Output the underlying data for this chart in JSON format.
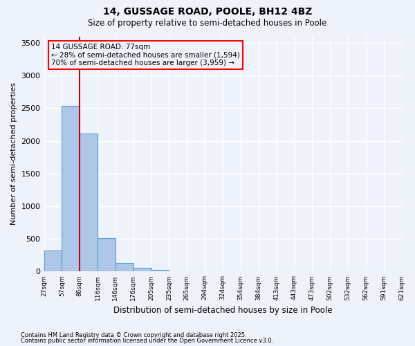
{
  "title_line1": "14, GUSSAGE ROAD, POOLE, BH12 4BZ",
  "title_line2": "Size of property relative to semi-detached houses in Poole",
  "xlabel": "Distribution of semi-detached houses by size in Poole",
  "ylabel": "Number of semi-detached properties",
  "bar_values": [
    320,
    2540,
    2110,
    510,
    130,
    60,
    30,
    0,
    0,
    0,
    0,
    0,
    0,
    0,
    0,
    0,
    0,
    0,
    0,
    0
  ],
  "categories": [
    "27sqm",
    "57sqm",
    "86sqm",
    "116sqm",
    "146sqm",
    "176sqm",
    "205sqm",
    "235sqm",
    "265sqm",
    "294sqm",
    "324sqm",
    "354sqm",
    "384sqm",
    "413sqm",
    "443sqm",
    "473sqm",
    "502sqm",
    "532sqm",
    "562sqm",
    "591sqm",
    "621sqm"
  ],
  "bar_color": "#aec6e8",
  "bar_edge_color": "#5b9bd5",
  "vline_color": "#cc0000",
  "ylim": [
    0,
    3600
  ],
  "yticks": [
    0,
    500,
    1000,
    1500,
    2000,
    2500,
    3000,
    3500
  ],
  "annotation_box_text": "14 GUSSAGE ROAD: 77sqm\n← 28% of semi-detached houses are smaller (1,594)\n70% of semi-detached houses are larger (3,959) →",
  "annotation_box_color": "red",
  "background_color": "#eef3fb",
  "grid_color": "#ffffff",
  "footer_line1": "Contains HM Land Registry data © Crown copyright and database right 2025.",
  "footer_line2": "Contains public sector information licensed under the Open Government Licence v3.0."
}
